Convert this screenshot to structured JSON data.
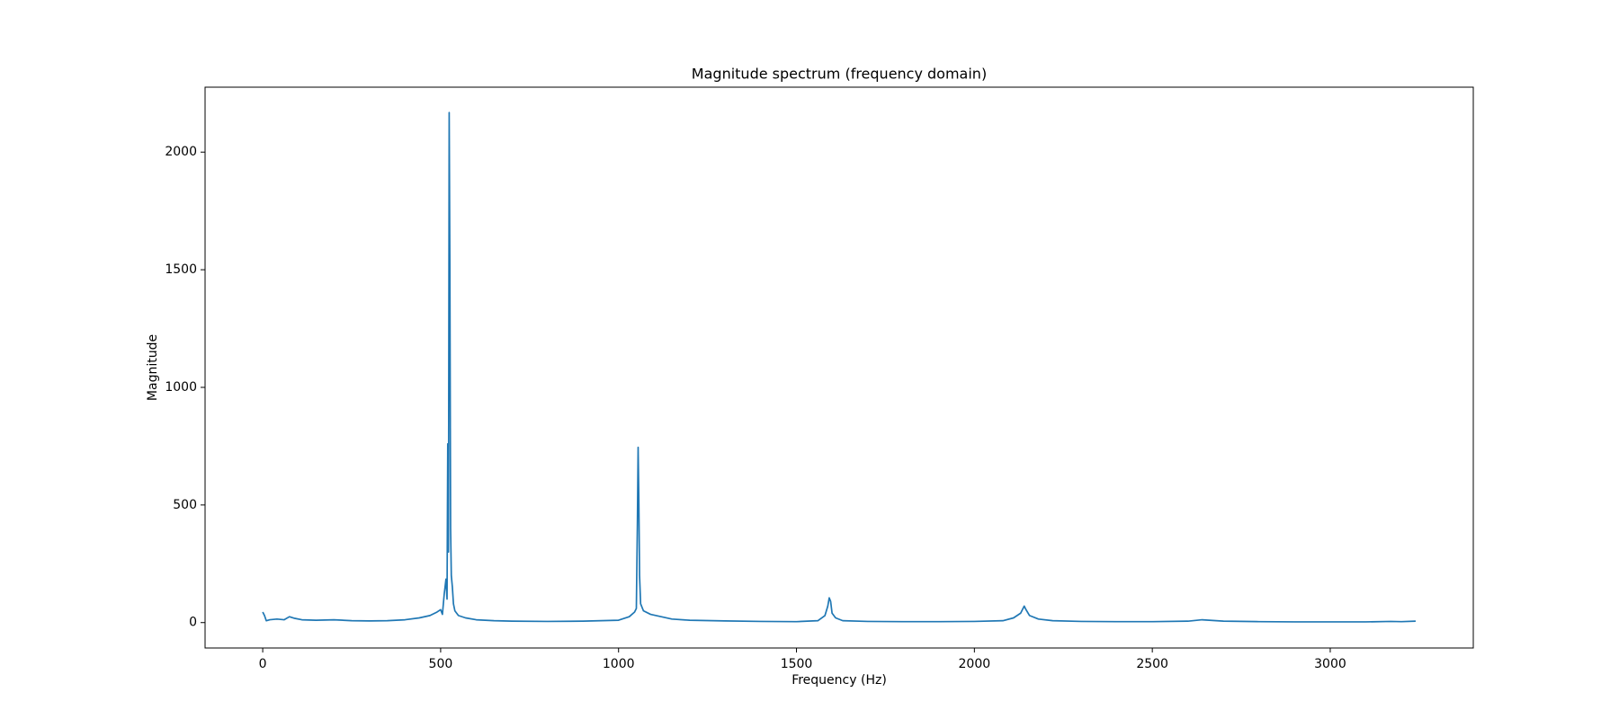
{
  "chart_data": {
    "type": "line",
    "title": "Magnitude spectrum (frequency domain)",
    "x_label": "Frequency (Hz)",
    "y_label": "Magnitude",
    "color": "#1f77b4",
    "x": [
      0,
      5,
      10,
      20,
      40,
      60,
      75,
      90,
      110,
      150,
      200,
      250,
      300,
      350,
      400,
      440,
      470,
      490,
      500,
      505,
      510,
      515,
      518,
      520,
      522,
      524,
      526,
      528,
      530,
      533,
      536,
      540,
      550,
      570,
      600,
      650,
      700,
      800,
      900,
      1000,
      1030,
      1045,
      1050,
      1053,
      1055,
      1057,
      1059,
      1062,
      1070,
      1090,
      1120,
      1150,
      1200,
      1300,
      1400,
      1500,
      1560,
      1580,
      1588,
      1592,
      1596,
      1600,
      1610,
      1630,
      1700,
      1800,
      1900,
      2000,
      2080,
      2110,
      2130,
      2140,
      2145,
      2155,
      2180,
      2220,
      2300,
      2400,
      2500,
      2600,
      2640,
      2660,
      2700,
      2800,
      2900,
      3000,
      3100,
      3170,
      3200,
      3240
    ],
    "values": [
      45,
      30,
      8,
      12,
      15,
      12,
      25,
      18,
      12,
      10,
      12,
      8,
      7,
      8,
      12,
      20,
      30,
      45,
      55,
      35,
      120,
      185,
      100,
      760,
      300,
      2168,
      1500,
      400,
      200,
      150,
      80,
      50,
      30,
      20,
      12,
      8,
      6,
      5,
      6,
      10,
      25,
      45,
      60,
      430,
      745,
      520,
      200,
      80,
      50,
      35,
      25,
      15,
      10,
      7,
      5,
      4,
      8,
      30,
      70,
      105,
      90,
      40,
      20,
      8,
      5,
      4,
      4,
      5,
      8,
      20,
      40,
      70,
      55,
      30,
      15,
      8,
      5,
      4,
      4,
      6,
      12,
      10,
      6,
      4,
      3,
      3,
      3,
      5,
      4,
      6
    ],
    "xlim": [
      -162,
      3402
    ],
    "ylim": [
      -108,
      2276
    ],
    "xticks": [
      0,
      500,
      1000,
      1500,
      2000,
      2500,
      3000
    ],
    "yticks": [
      0,
      500,
      1000,
      1500,
      2000
    ],
    "grid": false
  }
}
